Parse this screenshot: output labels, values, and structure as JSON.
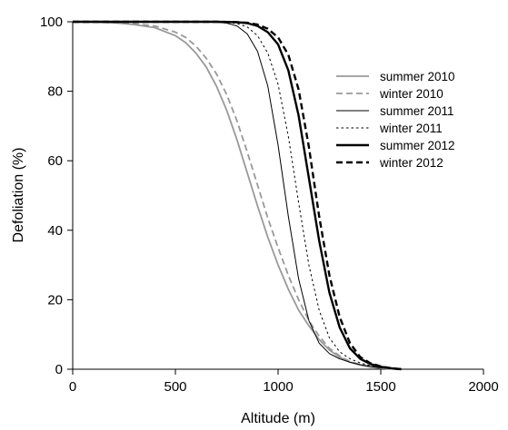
{
  "chart_data": {
    "type": "line",
    "title": "",
    "xlabel": "Altitude (m)",
    "ylabel": "Defoliation (%)",
    "xlim": [
      0,
      2000
    ],
    "ylim": [
      0,
      100
    ],
    "xticks": [
      0,
      500,
      1000,
      1500,
      2000
    ],
    "yticks": [
      0,
      20,
      40,
      60,
      80,
      100
    ],
    "grid": false,
    "legend_position": "top-right",
    "series": [
      {
        "name": "summer 2010",
        "color": "#999999",
        "style": "solid",
        "weight": "normal",
        "x": [
          0,
          100,
          200,
          300,
          400,
          500,
          550,
          600,
          650,
          700,
          750,
          800,
          850,
          900,
          950,
          1000,
          1050,
          1100,
          1150,
          1200,
          1250,
          1300,
          1350,
          1400,
          1450,
          1500,
          1550,
          1600
        ],
        "y": [
          100,
          99.9,
          99.7,
          99.2,
          98.3,
          96,
          94,
          91,
          87,
          81.5,
          74.5,
          66,
          56.5,
          47,
          38,
          30,
          23,
          17,
          12.5,
          8.5,
          5.5,
          3.5,
          2,
          1.2,
          0.6,
          0.3,
          0.1,
          0
        ]
      },
      {
        "name": "winter 2010",
        "color": "#999999",
        "style": "dashed",
        "weight": "normal",
        "x": [
          0,
          100,
          200,
          300,
          400,
          500,
          550,
          600,
          650,
          700,
          750,
          800,
          850,
          900,
          950,
          1000,
          1050,
          1100,
          1150,
          1200,
          1250,
          1300,
          1350,
          1400,
          1450,
          1500,
          1550,
          1600
        ],
        "y": [
          100,
          99.9,
          99.8,
          99.4,
          98.8,
          97,
          95.5,
          93,
          89.5,
          85,
          79,
          71.5,
          62.5,
          53,
          43.5,
          35,
          27,
          20,
          14,
          9.5,
          6,
          3.8,
          2.2,
          1.3,
          0.7,
          0.3,
          0.1,
          0
        ]
      },
      {
        "name": "summer 2011",
        "color": "#000000",
        "style": "solid",
        "weight": "thin",
        "x": [
          0,
          600,
          700,
          750,
          800,
          850,
          900,
          950,
          1000,
          1050,
          1100,
          1150,
          1200,
          1250,
          1300,
          1350,
          1400,
          1450,
          1500,
          1550,
          1600
        ],
        "y": [
          100,
          100,
          99.9,
          99.6,
          98.8,
          96.5,
          91.5,
          81.5,
          64.5,
          44,
          26,
          14,
          7.5,
          4.5,
          3,
          2,
          1.3,
          0.8,
          0.4,
          0.2,
          0
        ]
      },
      {
        "name": "winter 2011",
        "color": "#000000",
        "style": "dotted",
        "weight": "thin",
        "x": [
          0,
          600,
          700,
          750,
          800,
          850,
          900,
          950,
          1000,
          1050,
          1100,
          1150,
          1200,
          1250,
          1300,
          1350,
          1400,
          1450,
          1500,
          1550,
          1600
        ],
        "y": [
          100,
          100,
          99.9,
          99.8,
          99.5,
          98.5,
          96,
          91,
          82,
          67,
          48,
          30,
          17,
          9,
          5,
          3,
          1.8,
          1,
          0.5,
          0.2,
          0
        ]
      },
      {
        "name": "summer 2012",
        "color": "#000000",
        "style": "solid",
        "weight": "thick",
        "x": [
          0,
          700,
          800,
          850,
          900,
          950,
          1000,
          1050,
          1100,
          1150,
          1200,
          1250,
          1300,
          1350,
          1400,
          1450,
          1500,
          1550,
          1600
        ],
        "y": [
          100,
          100,
          99.9,
          99.6,
          98.8,
          97,
          93.5,
          86,
          73,
          55,
          37,
          22,
          12,
          6,
          3,
          1.5,
          0.7,
          0.3,
          0
        ]
      },
      {
        "name": "winter 2012",
        "color": "#000000",
        "style": "dashed",
        "weight": "thick",
        "x": [
          0,
          700,
          800,
          850,
          900,
          950,
          1000,
          1050,
          1100,
          1150,
          1200,
          1250,
          1300,
          1350,
          1400,
          1450,
          1500,
          1550,
          1600
        ],
        "y": [
          100,
          100,
          99.9,
          99.7,
          99.2,
          98,
          95.5,
          90.5,
          80.5,
          64,
          44,
          27,
          15,
          7.5,
          3.5,
          1.7,
          0.8,
          0.3,
          0
        ]
      }
    ]
  }
}
